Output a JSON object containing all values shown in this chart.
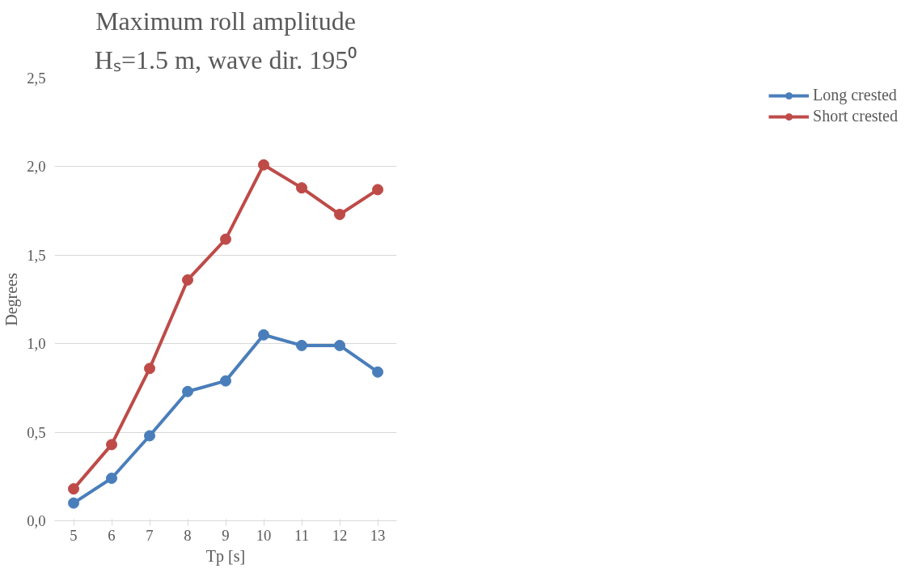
{
  "chart_data": {
    "type": "line",
    "title": "Maximum roll amplitude",
    "subtitle": "Hₛ=1.5 m, wave dir. 195⁰",
    "xlabel": "Tp [s]",
    "ylabel": "Degrees",
    "categories": [
      "5",
      "6",
      "7",
      "8",
      "9",
      "10",
      "11",
      "12",
      "13"
    ],
    "series": [
      {
        "name": "Long crested",
        "color": "#4a7ebb",
        "values": [
          0.1,
          0.24,
          0.48,
          0.73,
          0.79,
          1.05,
          0.99,
          0.99,
          0.84
        ]
      },
      {
        "name": "Short crested",
        "color": "#be4b48",
        "values": [
          0.18,
          0.43,
          0.86,
          1.36,
          1.59,
          2.01,
          1.88,
          1.73,
          1.87
        ]
      }
    ],
    "ylim": [
      0,
      2.5
    ],
    "yticks": [
      {
        "value": 0,
        "label": "0,0"
      },
      {
        "value": 0.5,
        "label": "0,5"
      },
      {
        "value": 1,
        "label": "1,0"
      },
      {
        "value": 1.5,
        "label": "1,5"
      },
      {
        "value": 2,
        "label": "2,0"
      },
      {
        "value": 2.5,
        "label": "2,5"
      }
    ],
    "grid": "y",
    "legend": "right",
    "marker": "circle",
    "line_style": "solid"
  }
}
